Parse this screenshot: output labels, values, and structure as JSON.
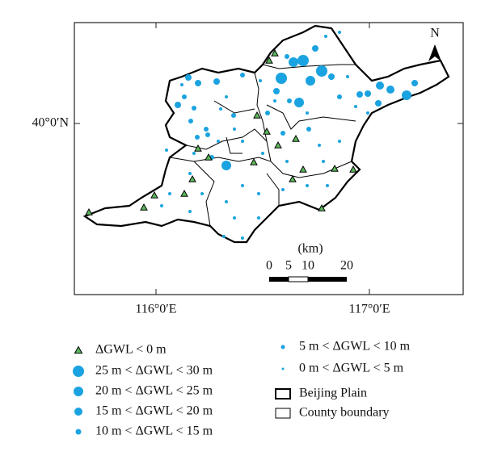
{
  "map": {
    "north_label": "N",
    "lat_label": "40°0′N",
    "lon_labels": [
      "116°0′E",
      "117°0′E"
    ],
    "scale": {
      "unit": "(km)",
      "ticks": [
        0,
        5,
        10,
        20
      ]
    }
  },
  "legend": {
    "symbols": [
      "ΔGWL < 0 m",
      "25 m < ΔGWL < 30 m",
      "20 m < ΔGWL < 25 m",
      "15 m < ΔGWL < 20 m",
      "10 m < ΔGWL < 15 m",
      "5 m < ΔGWL < 10 m",
      "0 m < ΔGWL < 5 m"
    ],
    "boundaries": [
      "Beijing Plain",
      "County boundary"
    ]
  }
}
